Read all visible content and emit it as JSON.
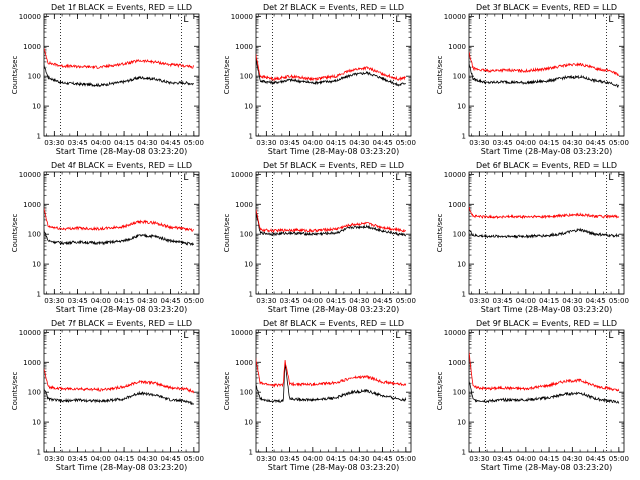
{
  "figure": {
    "common": {
      "ylabel": "Counts/sec",
      "xlabel": "Start Time (28-May-08 03:23:20)",
      "x_ticks": [
        "03:30",
        "03:45",
        "04:00",
        "04:15",
        "04:30",
        "04:45",
        "05:00"
      ],
      "y_ticks": [
        "1",
        "10",
        "100",
        "1000",
        "10000"
      ],
      "ylim": [
        1,
        12000
      ],
      "xlim": [
        "03:23:20",
        "05:03:20"
      ],
      "y_scale": "log",
      "dotted_vertical_lines": [
        "03:34",
        "04:52"
      ],
      "marker_label": "L",
      "colors": {
        "events": "#000000",
        "lld": "#ff0000"
      }
    }
  },
  "chart_data": [
    {
      "type": "line",
      "title": "Det 1f BLACK = Events, RED = LLD",
      "x_ticks": [
        "03:30",
        "03:45",
        "04:00",
        "04:15",
        "04:30",
        "04:45",
        "05:00"
      ],
      "series": [
        {
          "name": "Events",
          "color": "#000000",
          "x": [
            "03:23",
            "03:26",
            "03:35",
            "03:45",
            "04:00",
            "04:15",
            "04:25",
            "04:35",
            "04:45",
            "04:55",
            "05:00"
          ],
          "values": [
            260,
            90,
            60,
            55,
            50,
            65,
            90,
            80,
            60,
            60,
            55
          ]
        },
        {
          "name": "LLD",
          "color": "#ff0000",
          "x": [
            "03:23",
            "03:26",
            "03:35",
            "03:45",
            "04:00",
            "04:15",
            "04:25",
            "04:35",
            "04:45",
            "04:55",
            "05:00"
          ],
          "values": [
            900,
            280,
            220,
            210,
            200,
            260,
            330,
            300,
            240,
            220,
            200
          ]
        }
      ]
    },
    {
      "type": "line",
      "title": "Det 2f BLACK = Events, RED = LLD",
      "x_ticks": [
        "03:30",
        "03:45",
        "04:00",
        "04:15",
        "04:30",
        "04:45",
        "05:00"
      ],
      "series": [
        {
          "name": "Events",
          "color": "#000000",
          "x": [
            "03:23",
            "03:26",
            "03:35",
            "03:45",
            "04:00",
            "04:15",
            "04:25",
            "04:35",
            "04:45",
            "04:55",
            "05:00"
          ],
          "values": [
            500,
            70,
            60,
            75,
            60,
            70,
            110,
            130,
            85,
            50,
            60
          ]
        },
        {
          "name": "LLD",
          "color": "#ff0000",
          "x": [
            "03:23",
            "03:26",
            "03:35",
            "03:45",
            "04:00",
            "04:15",
            "04:25",
            "04:35",
            "04:45",
            "04:55",
            "05:00"
          ],
          "values": [
            600,
            100,
            80,
            100,
            80,
            100,
            160,
            190,
            120,
            80,
            90
          ]
        }
      ]
    },
    {
      "type": "line",
      "title": "Det 3f BLACK = Events, RED = LLD",
      "x_ticks": [
        "03:30",
        "03:45",
        "04:00",
        "04:15",
        "04:30",
        "04:45",
        "05:00"
      ],
      "series": [
        {
          "name": "Events",
          "color": "#000000",
          "x": [
            "03:23",
            "03:26",
            "03:35",
            "03:45",
            "04:00",
            "04:15",
            "04:25",
            "04:35",
            "04:45",
            "04:55",
            "05:00"
          ],
          "values": [
            300,
            80,
            60,
            65,
            60,
            70,
            90,
            95,
            70,
            60,
            45
          ]
        },
        {
          "name": "LLD",
          "color": "#ff0000",
          "x": [
            "03:23",
            "03:26",
            "03:35",
            "03:45",
            "04:00",
            "04:15",
            "04:25",
            "04:35",
            "04:45",
            "04:55",
            "05:00"
          ],
          "values": [
            700,
            180,
            150,
            160,
            150,
            180,
            230,
            250,
            180,
            150,
            110
          ]
        }
      ]
    },
    {
      "type": "line",
      "title": "Det 4f BLACK = Events, RED = LLD",
      "x_ticks": [
        "03:30",
        "03:45",
        "04:00",
        "04:15",
        "04:30",
        "04:45",
        "05:00"
      ],
      "series": [
        {
          "name": "Events",
          "color": "#000000",
          "x": [
            "03:23",
            "03:26",
            "03:35",
            "03:45",
            "04:00",
            "04:15",
            "04:25",
            "04:35",
            "04:45",
            "04:55",
            "05:00"
          ],
          "values": [
            150,
            60,
            50,
            55,
            50,
            60,
            90,
            85,
            60,
            50,
            45
          ]
        },
        {
          "name": "LLD",
          "color": "#ff0000",
          "x": [
            "03:23",
            "03:26",
            "03:35",
            "03:45",
            "04:00",
            "04:15",
            "04:25",
            "04:35",
            "04:45",
            "04:55",
            "05:00"
          ],
          "values": [
            800,
            180,
            150,
            160,
            150,
            180,
            260,
            240,
            170,
            150,
            130
          ]
        }
      ]
    },
    {
      "type": "line",
      "title": "Det 5f BLACK = Events, RED = LLD",
      "x_ticks": [
        "03:30",
        "03:45",
        "04:00",
        "04:15",
        "04:30",
        "04:45",
        "05:00"
      ],
      "series": [
        {
          "name": "Events",
          "color": "#000000",
          "x": [
            "03:23",
            "03:26",
            "03:35",
            "03:45",
            "04:00",
            "04:15",
            "04:25",
            "04:35",
            "04:45",
            "04:55",
            "05:00"
          ],
          "values": [
            700,
            110,
            100,
            110,
            100,
            110,
            170,
            180,
            130,
            100,
            95
          ]
        },
        {
          "name": "LLD",
          "color": "#ff0000",
          "x": [
            "03:23",
            "03:26",
            "03:35",
            "03:45",
            "04:00",
            "04:15",
            "04:25",
            "04:35",
            "04:45",
            "04:55",
            "05:00"
          ],
          "values": [
            800,
            140,
            130,
            140,
            130,
            150,
            210,
            230,
            170,
            140,
            130
          ]
        }
      ]
    },
    {
      "type": "line",
      "title": "Det 6f BLACK = Events, RED = LLD",
      "x_ticks": [
        "03:30",
        "03:45",
        "04:00",
        "04:15",
        "04:30",
        "04:45",
        "05:00"
      ],
      "series": [
        {
          "name": "Events",
          "color": "#000000",
          "x": [
            "03:23",
            "03:26",
            "03:35",
            "03:45",
            "04:00",
            "04:15",
            "04:25",
            "04:35",
            "04:45",
            "04:55",
            "05:00"
          ],
          "values": [
            150,
            90,
            85,
            85,
            85,
            90,
            110,
            140,
            100,
            90,
            90
          ]
        },
        {
          "name": "LLD",
          "color": "#ff0000",
          "x": [
            "03:23",
            "03:26",
            "03:35",
            "03:45",
            "04:00",
            "04:15",
            "04:25",
            "04:35",
            "04:45",
            "04:55",
            "05:00"
          ],
          "values": [
            800,
            400,
            380,
            380,
            380,
            390,
            420,
            450,
            400,
            380,
            400
          ]
        }
      ]
    },
    {
      "type": "line",
      "title": "Det 7f BLACK = Events, RED = LLD",
      "x_ticks": [
        "03:30",
        "03:45",
        "04:00",
        "04:15",
        "04:30",
        "04:45",
        "05:00"
      ],
      "series": [
        {
          "name": "Events",
          "color": "#000000",
          "x": [
            "03:23",
            "03:26",
            "03:35",
            "03:45",
            "04:00",
            "04:15",
            "04:25",
            "04:35",
            "04:45",
            "04:55",
            "05:00"
          ],
          "values": [
            150,
            60,
            50,
            55,
            50,
            60,
            95,
            80,
            55,
            50,
            40
          ]
        },
        {
          "name": "LLD",
          "color": "#ff0000",
          "x": [
            "03:23",
            "03:26",
            "03:35",
            "03:45",
            "04:00",
            "04:15",
            "04:25",
            "04:35",
            "04:45",
            "04:55",
            "05:00"
          ],
          "values": [
            700,
            150,
            130,
            130,
            120,
            150,
            230,
            200,
            140,
            130,
            100
          ]
        }
      ]
    },
    {
      "type": "line",
      "title": "Det 8f BLACK = Events, RED = LLD",
      "x_ticks": [
        "03:30",
        "03:45",
        "04:00",
        "04:15",
        "04:30",
        "04:45",
        "05:00"
      ],
      "series": [
        {
          "name": "Events",
          "color": "#000000",
          "x": [
            "03:23",
            "03:26",
            "03:35",
            "03:41",
            "03:42",
            "03:45",
            "04:00",
            "04:15",
            "04:25",
            "04:35",
            "04:45",
            "04:55",
            "05:00"
          ],
          "values": [
            200,
            60,
            50,
            50,
            1000,
            60,
            55,
            65,
            100,
            110,
            75,
            60,
            55
          ]
        },
        {
          "name": "LLD",
          "color": "#ff0000",
          "x": [
            "03:23",
            "03:26",
            "03:35",
            "03:41",
            "03:42",
            "03:45",
            "04:00",
            "04:15",
            "04:25",
            "04:35",
            "04:45",
            "04:55",
            "05:00"
          ],
          "values": [
            1500,
            200,
            170,
            180,
            1200,
            190,
            180,
            210,
            300,
            330,
            220,
            190,
            180
          ]
        }
      ]
    },
    {
      "type": "line",
      "title": "Det 9f BLACK = Events, RED = LLD",
      "x_ticks": [
        "03:30",
        "03:45",
        "04:00",
        "04:15",
        "04:30",
        "04:45",
        "05:00"
      ],
      "series": [
        {
          "name": "Events",
          "color": "#000000",
          "x": [
            "03:23",
            "03:26",
            "03:35",
            "03:45",
            "04:00",
            "04:15",
            "04:25",
            "04:35",
            "04:45",
            "04:55",
            "05:00"
          ],
          "values": [
            300,
            55,
            50,
            55,
            55,
            65,
            85,
            95,
            60,
            50,
            45
          ]
        },
        {
          "name": "LLD",
          "color": "#ff0000",
          "x": [
            "03:23",
            "03:26",
            "03:35",
            "03:45",
            "04:00",
            "04:15",
            "04:25",
            "04:35",
            "04:45",
            "04:55",
            "05:00"
          ],
          "values": [
            3000,
            150,
            130,
            140,
            130,
            170,
            230,
            250,
            160,
            130,
            110
          ]
        }
      ]
    }
  ]
}
